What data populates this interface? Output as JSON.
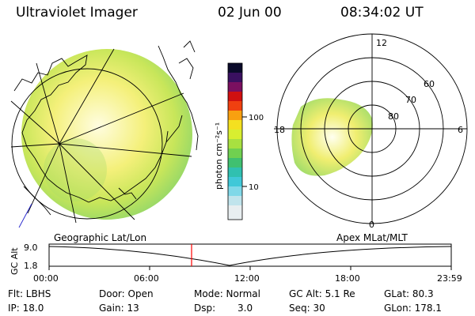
{
  "header": {
    "instrument": "Ultraviolet Imager",
    "date": "02 Jun 00",
    "time": "08:34:02 UT"
  },
  "colorbar": {
    "unit_label": "photon cm⁻²s⁻¹",
    "tick_labels": [
      "100",
      "10"
    ]
  },
  "polar_plot": {
    "mlt_labels": {
      "top": "12",
      "left": "18",
      "right": "6",
      "bottom": "0"
    },
    "lat_labels": [
      "60",
      "70",
      "80"
    ]
  },
  "timeline": {
    "left_title": "Geographic Lat/Lon",
    "right_title": "Apex MLat/MLT",
    "y_axis_label": "GC Alt",
    "y_ticks": [
      "9.0",
      "1.8"
    ],
    "x_ticks": [
      "00:00",
      "06:00",
      "12:00",
      "18:00",
      "23:59"
    ],
    "current_time_marker_color": "#ff0000"
  },
  "info": {
    "row1": {
      "flt": "Flt: LBHS",
      "door": "Door: Open",
      "mode": "Mode: Normal",
      "gcalt": "GC Alt: 5.1 Re",
      "glat": "GLat: 80.3"
    },
    "row2": {
      "ip": "IP: 18.0",
      "gain": "Gain: 13",
      "dsp_label": "Dsp:",
      "dsp_value": "3.0",
      "seq": "Seq: 30",
      "glon": "GLon: 178.1"
    }
  }
}
